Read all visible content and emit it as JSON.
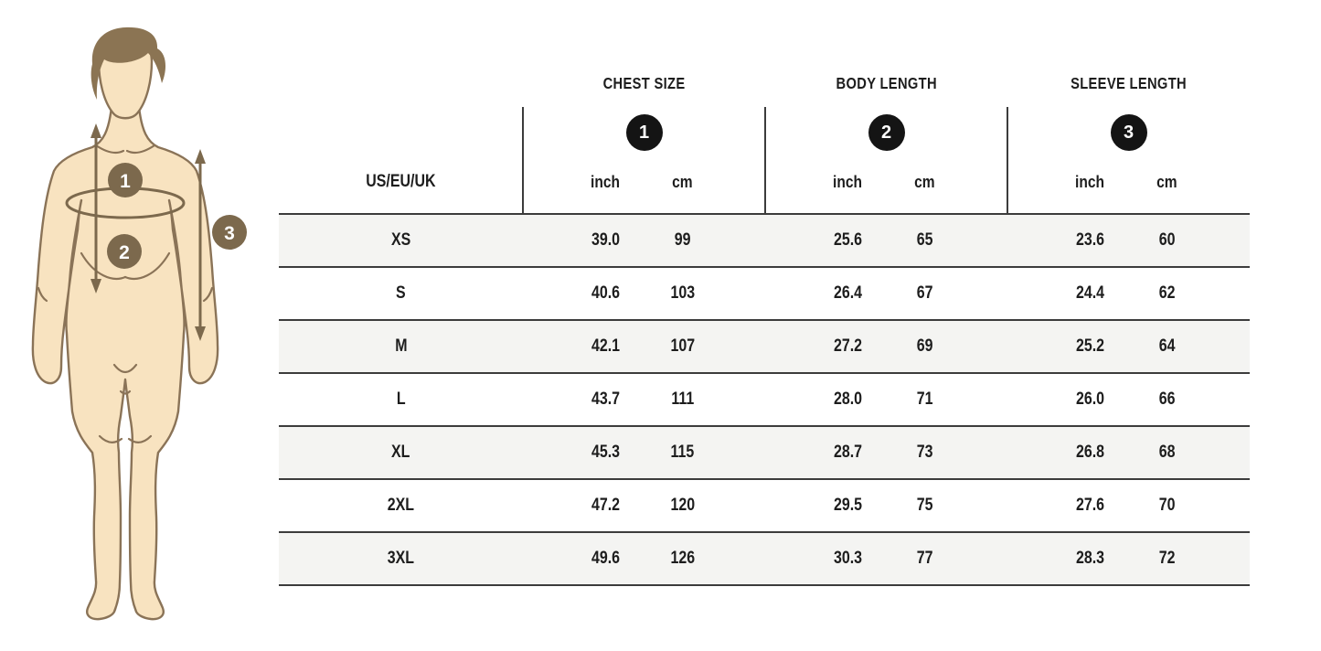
{
  "figure": {
    "description": "front-facing male body outline with measurement markers",
    "skin_color": "#f8e3c0",
    "outline_color": "#8a7357",
    "marker_color": "#7c694d",
    "badges": [
      {
        "number": "1",
        "meaning": "chest size"
      },
      {
        "number": "2",
        "meaning": "body length"
      },
      {
        "number": "3",
        "meaning": "sleeve length"
      }
    ]
  },
  "table": {
    "size_label_header": "US/EU/UK",
    "groups": [
      {
        "title": "CHEST SIZE",
        "badge": "1",
        "units": [
          "inch",
          "cm"
        ]
      },
      {
        "title": "BODY LENGTH",
        "badge": "2",
        "units": [
          "inch",
          "cm"
        ]
      },
      {
        "title": "SLEEVE LENGTH",
        "badge": "3",
        "units": [
          "inch",
          "cm"
        ]
      }
    ],
    "rows": [
      {
        "size": "XS",
        "chest_inch": "39.0",
        "chest_cm": "99",
        "body_inch": "25.6",
        "body_cm": "65",
        "sleeve_inch": "23.6",
        "sleeve_cm": "60"
      },
      {
        "size": "S",
        "chest_inch": "40.6",
        "chest_cm": "103",
        "body_inch": "26.4",
        "body_cm": "67",
        "sleeve_inch": "24.4",
        "sleeve_cm": "62"
      },
      {
        "size": "M",
        "chest_inch": "42.1",
        "chest_cm": "107",
        "body_inch": "27.2",
        "body_cm": "69",
        "sleeve_inch": "25.2",
        "sleeve_cm": "64"
      },
      {
        "size": "L",
        "chest_inch": "43.7",
        "chest_cm": "111",
        "body_inch": "28.0",
        "body_cm": "71",
        "sleeve_inch": "26.0",
        "sleeve_cm": "66"
      },
      {
        "size": "XL",
        "chest_inch": "45.3",
        "chest_cm": "115",
        "body_inch": "28.7",
        "body_cm": "73",
        "sleeve_inch": "26.8",
        "sleeve_cm": "68"
      },
      {
        "size": "2XL",
        "chest_inch": "47.2",
        "chest_cm": "120",
        "body_inch": "29.5",
        "body_cm": "75",
        "sleeve_inch": "27.6",
        "sleeve_cm": "70"
      },
      {
        "size": "3XL",
        "chest_inch": "49.6",
        "chest_cm": "126",
        "body_inch": "30.3",
        "body_cm": "77",
        "sleeve_inch": "28.3",
        "sleeve_cm": "72"
      }
    ],
    "colors": {
      "alt_row_bg": "#f4f4f2",
      "border": "#3c3c3c",
      "header_badge_bg": "#141414",
      "text": "#1d1d1d"
    }
  }
}
